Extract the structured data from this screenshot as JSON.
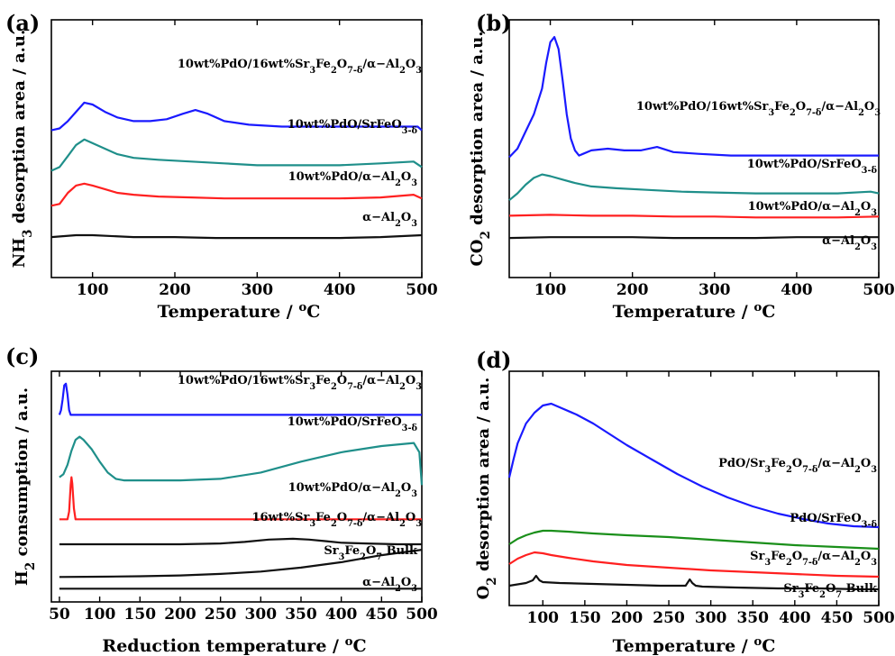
{
  "chart_data": [
    {
      "type": "line",
      "panel_label": "(a)",
      "xlabel": "Temperature / °C",
      "ylabel": "NH₃ desorption area / a.u.",
      "xlim": [
        50,
        500
      ],
      "xticks": [
        "100",
        "200",
        "300",
        "400",
        "500"
      ],
      "y_ticks_shown": false,
      "series": [
        {
          "name": "10wt%PdO/16wt%Sr₃Fe₂O₇₋δ/α−Al₂O₃",
          "color": "#1a1aff",
          "x": [
            50,
            60,
            70,
            80,
            90,
            100,
            115,
            130,
            150,
            170,
            190,
            210,
            225,
            240,
            260,
            290,
            330,
            380,
            430,
            480,
            495,
            500
          ],
          "y": [
            7.0,
            7.1,
            7.5,
            8.0,
            8.5,
            8.4,
            8.0,
            7.7,
            7.5,
            7.5,
            7.6,
            7.9,
            8.1,
            7.9,
            7.5,
            7.3,
            7.2,
            7.2,
            7.2,
            7.2,
            7.2,
            7.0
          ]
        },
        {
          "name": "10wt%PdO/SrFeO₃₋δ",
          "color": "#1f8f8a",
          "x": [
            50,
            60,
            70,
            80,
            90,
            100,
            115,
            130,
            150,
            180,
            220,
            260,
            300,
            350,
            400,
            450,
            490,
            500
          ],
          "y": [
            4.8,
            5.0,
            5.6,
            6.2,
            6.5,
            6.3,
            6.0,
            5.7,
            5.5,
            5.4,
            5.3,
            5.2,
            5.1,
            5.1,
            5.1,
            5.2,
            5.3,
            5.0
          ]
        },
        {
          "name": "10wt%PdO/α−Al₂O₃",
          "color": "#ff2020",
          "x": [
            50,
            60,
            70,
            80,
            90,
            100,
            115,
            130,
            150,
            180,
            220,
            260,
            300,
            350,
            400,
            450,
            490,
            500
          ],
          "y": [
            2.9,
            3.0,
            3.6,
            4.0,
            4.1,
            4.0,
            3.8,
            3.6,
            3.5,
            3.4,
            3.35,
            3.3,
            3.3,
            3.3,
            3.3,
            3.35,
            3.5,
            3.3
          ]
        },
        {
          "name": "α−Al₂O₃",
          "color": "#111111",
          "x": [
            50,
            80,
            100,
            150,
            200,
            250,
            300,
            350,
            400,
            450,
            500
          ],
          "y": [
            1.2,
            1.3,
            1.3,
            1.2,
            1.2,
            1.15,
            1.15,
            1.15,
            1.15,
            1.2,
            1.3
          ]
        }
      ]
    },
    {
      "type": "line",
      "panel_label": "(b)",
      "xlabel": "Temperature / °C",
      "ylabel": "CO₂ desorption area / a.u.",
      "xlim": [
        50,
        500
      ],
      "xticks": [
        "100",
        "200",
        "300",
        "400",
        "500"
      ],
      "y_ticks_shown": false,
      "series": [
        {
          "name": "10wt%PdO/16wt%Sr₃Fe₂O₇₋δ/α−Al₂O₃",
          "color": "#1a1aff",
          "x": [
            50,
            60,
            70,
            80,
            90,
            95,
            100,
            105,
            110,
            115,
            120,
            125,
            130,
            135,
            140,
            150,
            170,
            190,
            210,
            230,
            250,
            280,
            320,
            370,
            420,
            470,
            500
          ],
          "y": [
            6.5,
            7.0,
            8.0,
            9.0,
            10.5,
            12.0,
            13.2,
            13.5,
            12.8,
            11.0,
            9.0,
            7.6,
            6.9,
            6.6,
            6.7,
            6.9,
            7.0,
            6.9,
            6.9,
            7.1,
            6.8,
            6.7,
            6.6,
            6.6,
            6.6,
            6.6,
            6.6
          ]
        },
        {
          "name": "10wt%PdO/SrFeO₃₋δ",
          "color": "#1f8f8a",
          "x": [
            50,
            60,
            70,
            80,
            90,
            100,
            115,
            130,
            150,
            180,
            220,
            260,
            300,
            350,
            400,
            450,
            490,
            500
          ],
          "y": [
            4.0,
            4.4,
            4.9,
            5.3,
            5.5,
            5.4,
            5.2,
            5.0,
            4.8,
            4.7,
            4.6,
            4.5,
            4.45,
            4.4,
            4.4,
            4.4,
            4.5,
            4.4
          ]
        },
        {
          "name": "10wt%PdO/α−Al₂O₃",
          "color": "#ff2020",
          "x": [
            50,
            100,
            150,
            200,
            250,
            300,
            350,
            400,
            450,
            500
          ],
          "y": [
            3.1,
            3.15,
            3.1,
            3.1,
            3.05,
            3.05,
            3.0,
            3.0,
            3.0,
            3.05
          ]
        },
        {
          "name": "α−Al₂O₃",
          "color": "#111111",
          "x": [
            50,
            100,
            150,
            200,
            250,
            300,
            350,
            400,
            450,
            500
          ],
          "y": [
            1.8,
            1.85,
            1.85,
            1.85,
            1.8,
            1.8,
            1.8,
            1.85,
            1.85,
            1.85
          ]
        }
      ]
    },
    {
      "type": "line",
      "panel_label": "(c)",
      "xlabel": "Reduction temperature / °C",
      "ylabel": "H₂ consumption / a.u.",
      "xlim": [
        40,
        500
      ],
      "xticks": [
        "50",
        "100",
        "150",
        "200",
        "250",
        "300",
        "350",
        "400",
        "450",
        "500"
      ],
      "y_ticks_shown": false,
      "series": [
        {
          "name": "10wt%PdO/16wt%Sr₃Fe₂O₇₋δ/α−Al₂O₃",
          "color": "#1a1aff",
          "x": [
            50,
            52,
            54,
            56,
            58,
            60,
            62,
            64,
            70,
            100,
            200,
            300,
            400,
            500
          ],
          "y": [
            11.0,
            11.3,
            12.0,
            12.9,
            13.0,
            12.3,
            11.3,
            11.0,
            11.0,
            11.0,
            11.0,
            11.0,
            11.0,
            11.0
          ]
        },
        {
          "name": "10wt%PdO/SrFeO₃₋δ",
          "color": "#1f8f8a",
          "x": [
            50,
            55,
            60,
            65,
            70,
            75,
            80,
            90,
            100,
            110,
            120,
            130,
            150,
            200,
            250,
            300,
            350,
            400,
            450,
            490,
            497,
            500
          ],
          "y": [
            7.0,
            7.2,
            7.8,
            8.7,
            9.4,
            9.6,
            9.4,
            8.8,
            8.0,
            7.3,
            6.9,
            6.8,
            6.8,
            6.8,
            6.9,
            7.3,
            8.0,
            8.6,
            9.0,
            9.2,
            8.6,
            6.5
          ]
        },
        {
          "name": "10wt%PdO/α−Al₂O₃",
          "color": "#ff2020",
          "x": [
            50,
            60,
            62,
            64,
            65,
            66,
            68,
            70,
            72,
            80,
            100,
            200,
            300,
            400,
            500
          ],
          "y": [
            4.3,
            4.3,
            4.8,
            6.5,
            7.0,
            6.6,
            5.0,
            4.3,
            4.3,
            4.3,
            4.3,
            4.3,
            4.3,
            4.3,
            4.3
          ]
        },
        {
          "name": "16wt%Sr₃Fe₂O₇₋δ/α−Al₂O₃",
          "color": "#111111",
          "x": [
            50,
            100,
            150,
            200,
            250,
            280,
            310,
            340,
            360,
            380,
            400,
            430,
            470,
            500
          ],
          "y": [
            2.7,
            2.7,
            2.7,
            2.7,
            2.75,
            2.85,
            3.0,
            3.05,
            3.0,
            2.9,
            2.8,
            2.75,
            2.7,
            2.7
          ]
        },
        {
          "name": "Sr₃Fe₂O₇ Bulk",
          "color": "#111111",
          "x": [
            50,
            100,
            150,
            200,
            250,
            300,
            350,
            400,
            450,
            500
          ],
          "y": [
            0.6,
            0.62,
            0.65,
            0.7,
            0.8,
            0.95,
            1.2,
            1.55,
            2.0,
            2.35
          ]
        },
        {
          "name": "α−Al₂O₃",
          "color": "#111111",
          "x": [
            50,
            500
          ],
          "y": [
            -0.15,
            -0.15
          ]
        }
      ]
    },
    {
      "type": "line",
      "panel_label": "(d)",
      "xlabel": "Temperature / °C",
      "ylabel": "O₂ desorption area / a.u.",
      "xlim": [
        60,
        500
      ],
      "xticks": [
        "100",
        "150",
        "200",
        "250",
        "300",
        "350",
        "400",
        "450",
        "500"
      ],
      "y_ticks_shown": false,
      "series": [
        {
          "name": "PdO/Sr₃Fe₂O₇₋δ/α−Al₂O₃",
          "color": "#1a1aff",
          "x": [
            60,
            65,
            70,
            80,
            90,
            100,
            110,
            120,
            140,
            160,
            180,
            200,
            230,
            260,
            290,
            320,
            350,
            380,
            410,
            440,
            470,
            500
          ],
          "y": [
            6.3,
            7.3,
            8.2,
            9.3,
            9.9,
            10.3,
            10.4,
            10.2,
            9.8,
            9.3,
            8.7,
            8.1,
            7.3,
            6.5,
            5.8,
            5.2,
            4.7,
            4.3,
            4.0,
            3.75,
            3.6,
            3.55
          ]
        },
        {
          "name": "PdO/SrFeO₃₋δ",
          "color": "#1a8f1a",
          "x": [
            60,
            70,
            80,
            90,
            100,
            110,
            130,
            160,
            200,
            250,
            300,
            350,
            400,
            450,
            500
          ],
          "y": [
            2.6,
            2.9,
            3.1,
            3.25,
            3.35,
            3.35,
            3.3,
            3.2,
            3.1,
            3.0,
            2.85,
            2.7,
            2.55,
            2.45,
            2.35
          ]
        },
        {
          "name": "Sr₃Fe₂O₇₋δ/α−Al₂O₃",
          "color": "#ff2020",
          "x": [
            60,
            70,
            80,
            90,
            100,
            110,
            130,
            160,
            200,
            250,
            300,
            350,
            400,
            450,
            500
          ],
          "y": [
            1.5,
            1.8,
            2.0,
            2.15,
            2.1,
            2.0,
            1.85,
            1.65,
            1.45,
            1.3,
            1.15,
            1.05,
            0.95,
            0.85,
            0.8
          ]
        },
        {
          "name": "Sr₃Fe₂O₇ Bulk",
          "color": "#111111",
          "x": [
            60,
            80,
            88,
            92,
            96,
            100,
            120,
            160,
            200,
            240,
            270,
            275,
            278,
            282,
            290,
            330,
            380,
            430,
            480,
            500
          ],
          "y": [
            0.3,
            0.45,
            0.6,
            0.85,
            0.6,
            0.5,
            0.45,
            0.4,
            0.35,
            0.3,
            0.3,
            0.65,
            0.45,
            0.3,
            0.25,
            0.2,
            0.15,
            0.15,
            0.1,
            0.1
          ]
        }
      ]
    }
  ]
}
